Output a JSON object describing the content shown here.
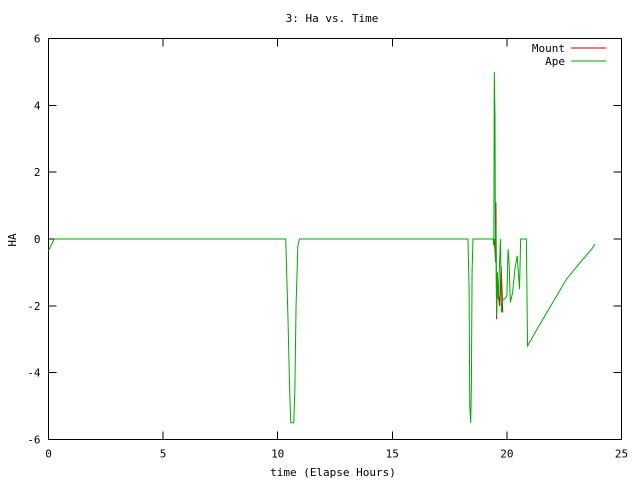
{
  "chart_data": {
    "type": "line",
    "title": "3: Ha vs. Time",
    "xlabel": "time (Elapse Hours)",
    "ylabel": "HA",
    "xlim": [
      0,
      25
    ],
    "ylim": [
      -6,
      6
    ],
    "xticks": [
      0,
      5,
      10,
      15,
      20,
      25
    ],
    "yticks": [
      -6,
      -4,
      -2,
      0,
      2,
      4,
      6
    ],
    "grid": false,
    "legend_position": "top-right",
    "series": [
      {
        "name": "Mount",
        "color": "#cc0000",
        "points": [
          [
            19.45,
            0.0
          ],
          [
            19.5,
            -0.6
          ],
          [
            19.52,
            1.1
          ],
          [
            19.55,
            -2.4
          ],
          [
            19.58,
            -1.0
          ],
          [
            19.62,
            -1.6
          ],
          [
            19.68,
            -2.0
          ],
          [
            19.75,
            -0.8
          ],
          [
            19.82,
            -2.2
          ]
        ]
      },
      {
        "name": "Ape",
        "color": "#00aa00",
        "points": [
          [
            0.0,
            -0.35
          ],
          [
            0.1,
            -0.2
          ],
          [
            0.25,
            0.0
          ],
          [
            10.35,
            0.0
          ],
          [
            10.45,
            -2.4
          ],
          [
            10.52,
            -4.5
          ],
          [
            10.57,
            -5.5
          ],
          [
            10.7,
            -5.5
          ],
          [
            10.75,
            -4.5
          ],
          [
            10.8,
            -2.0
          ],
          [
            10.88,
            -0.2
          ],
          [
            10.95,
            0.0
          ],
          [
            18.3,
            0.0
          ],
          [
            18.35,
            -1.5
          ],
          [
            18.38,
            -5.0
          ],
          [
            18.42,
            -5.5
          ],
          [
            18.45,
            -4.5
          ],
          [
            18.48,
            -1.0
          ],
          [
            18.52,
            0.0
          ],
          [
            19.4,
            0.0
          ],
          [
            19.43,
            -0.2
          ],
          [
            19.45,
            5.0
          ],
          [
            19.48,
            3.7
          ],
          [
            19.5,
            -0.7
          ],
          [
            19.52,
            0.4
          ],
          [
            19.55,
            -2.3
          ],
          [
            19.58,
            -1.0
          ],
          [
            19.62,
            -1.8
          ],
          [
            19.66,
            -1.1
          ],
          [
            19.72,
            0.0
          ],
          [
            19.76,
            -2.2
          ],
          [
            19.82,
            -1.8
          ],
          [
            19.9,
            -1.8
          ],
          [
            20.0,
            -1.7
          ],
          [
            20.05,
            -0.3
          ],
          [
            20.1,
            -0.8
          ],
          [
            20.15,
            -1.9
          ],
          [
            20.25,
            -1.6
          ],
          [
            20.35,
            -0.9
          ],
          [
            20.45,
            -0.5
          ],
          [
            20.55,
            -1.5
          ],
          [
            20.6,
            0.0
          ],
          [
            20.85,
            0.0
          ],
          [
            20.9,
            -3.2
          ],
          [
            21.4,
            -2.6
          ],
          [
            22.0,
            -1.9
          ],
          [
            22.6,
            -1.2
          ],
          [
            23.2,
            -0.7
          ],
          [
            23.7,
            -0.3
          ],
          [
            23.85,
            -0.15
          ]
        ]
      }
    ]
  }
}
